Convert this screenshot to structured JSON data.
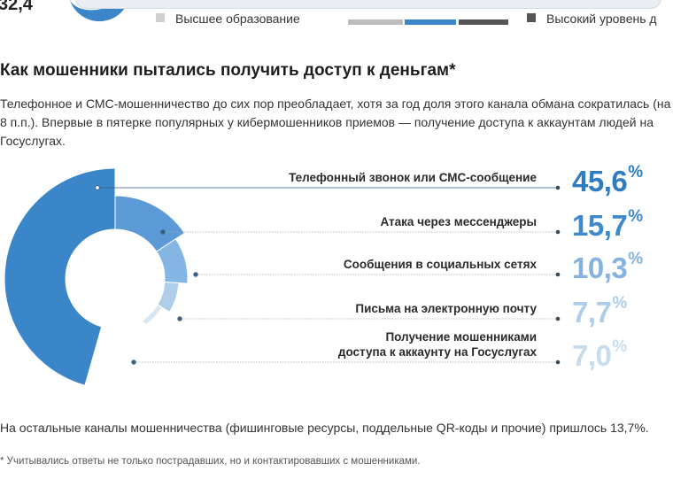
{
  "top": {
    "number": "32,4",
    "legend_left": "Высшее образование",
    "legend_right": "Высокий уровень д"
  },
  "title": "Как мошенники пытались получить доступ к деньгам*",
  "intro": "Телефонное и СМС-мошенничество до сих пор преобладает, хотя за год доля этого канала обмана сократилась (на 8 п.п.). Впервые в пятерке популярных у кибермошенников приемов — получение доступа к аккаунтам людей на Госуслугах.",
  "chart_data": {
    "type": "pie",
    "categories": [
      "Телефонный звонок или СМС-сообщение",
      "Атака через мессенджеры",
      "Сообщения в социальных сетях",
      "Письма на электронную почту",
      "Получение мошенниками доступа к аккаунту на Госуслугах"
    ],
    "values": [
      45.6,
      15.7,
      10.3,
      7.7,
      7.0
    ],
    "value_labels": [
      "45,6",
      "15,7",
      "10,3",
      "7,7",
      "7,0"
    ],
    "unit": "%",
    "label_lines": [
      [
        "Телефонный звонок или СМС-сообщение"
      ],
      [
        "Атака через мессенджеры"
      ],
      [
        "Сообщения в социальных сетях"
      ],
      [
        "Письма на электронную почту"
      ],
      [
        "Получение мошенниками",
        "доступа к аккаунту на Госуслугах"
      ]
    ],
    "colors": [
      "#3a86c8",
      "#5b9ad6",
      "#85b5e2",
      "#aecde9",
      "#d7e6f3"
    ],
    "value_colors": [
      "#2f7cc0",
      "#3f89cb",
      "#84b3df",
      "#aecde9",
      "#c7dced"
    ]
  },
  "other_text": "На остальные каналы мошенничества (фишинговые ресурсы, поддельные QR-коды и прочие) пришлось 13,7%.",
  "footnote": "* Учитывались ответы не только пострадавших, но и контактировавших с мошенниками."
}
